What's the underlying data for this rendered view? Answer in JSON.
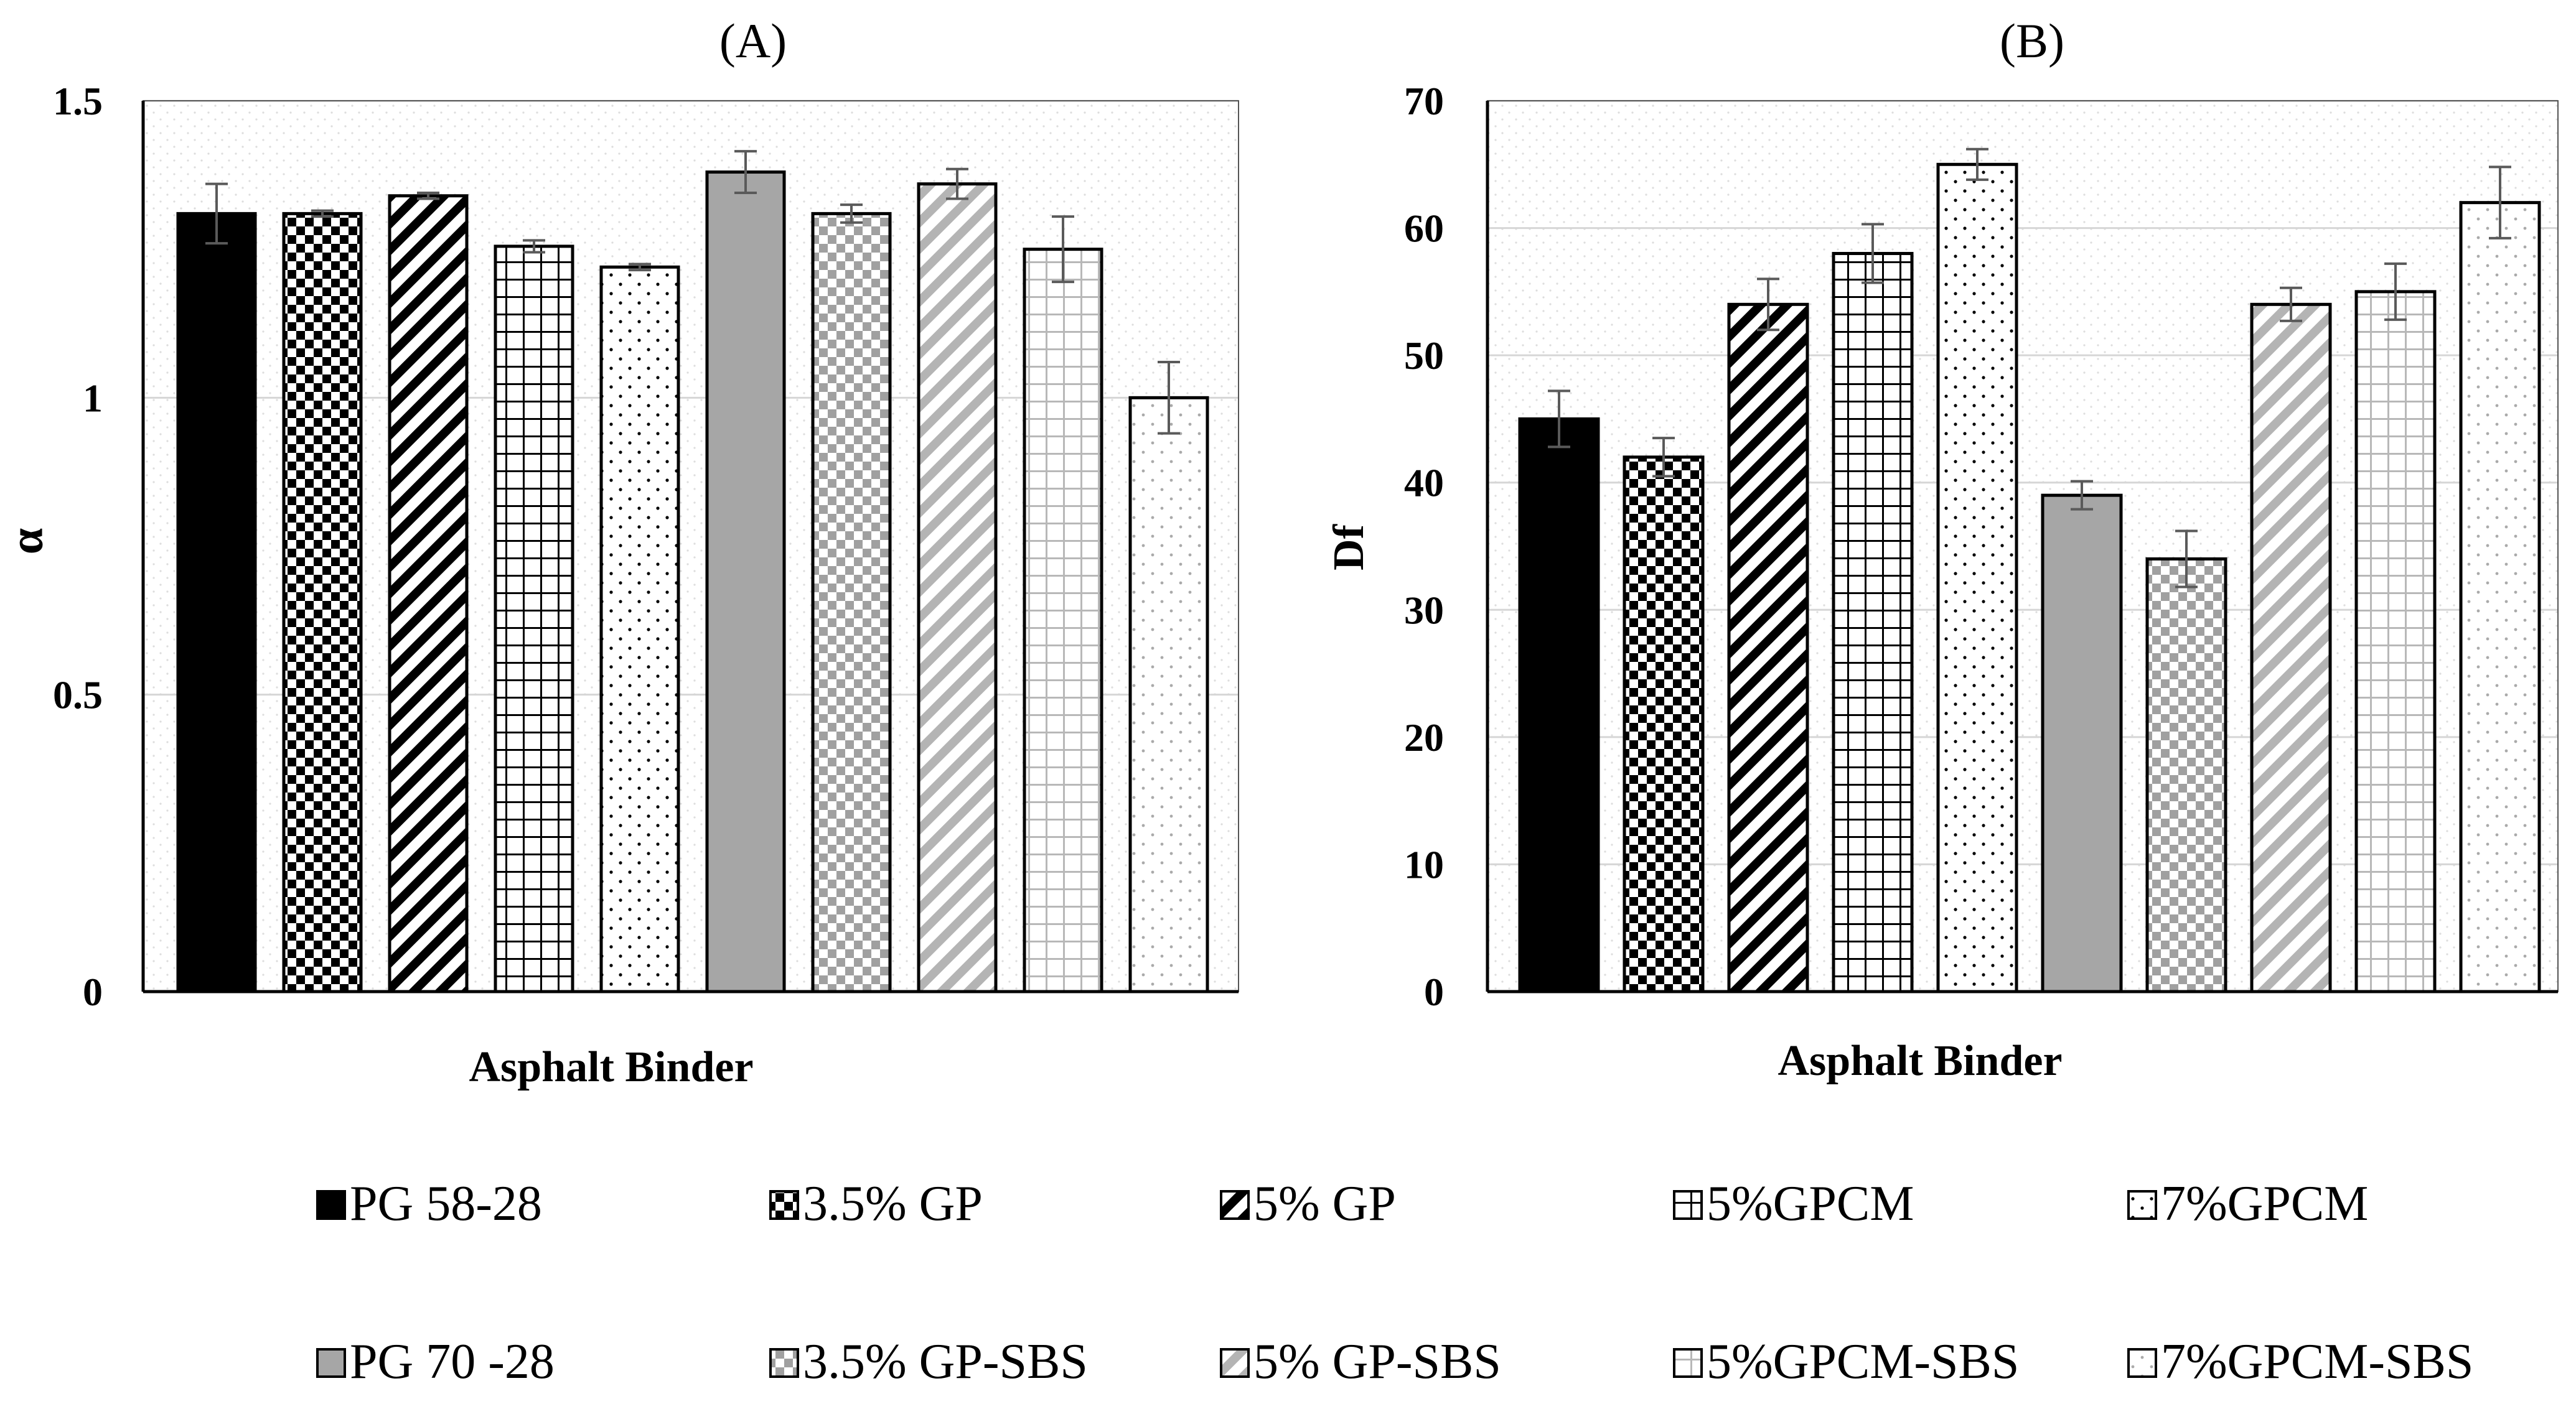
{
  "figure": {
    "legend_items": [
      {
        "label": "PG 58-28",
        "pattern": "solid-black"
      },
      {
        "label": "3.5% GP",
        "pattern": "checker-black"
      },
      {
        "label": "5% GP",
        "pattern": "diag-black"
      },
      {
        "label": "5%GPCM",
        "pattern": "grid"
      },
      {
        "label": "7%GPCM",
        "pattern": "dots"
      },
      {
        "label": "PG 70 -28",
        "pattern": "solid-gray"
      },
      {
        "label": "3.5% GP-SBS",
        "pattern": "checker-gray"
      },
      {
        "label": "5% GP-SBS",
        "pattern": "diag-gray"
      },
      {
        "label": "5%GPCM-SBS",
        "pattern": "grid-light"
      },
      {
        "label": "7%GPCM-SBS",
        "pattern": "dots-light"
      }
    ]
  },
  "chart_data": [
    {
      "panel": "A",
      "type": "bar",
      "title": "(A)",
      "xlabel": "Asphalt Binder",
      "ylabel": "α",
      "ylim": [
        0,
        1.5
      ],
      "yticks": [
        0,
        0.5,
        1,
        1.5
      ],
      "ytick_labels": [
        "0",
        "0.5",
        "1",
        "1.5"
      ],
      "grid": true,
      "categories": [
        "PG 58-28",
        "3.5% GP",
        "5% GP",
        "5%GPCM",
        "7%GPCM",
        "PG 70 -28",
        "3.5% GP-SBS",
        "5% GP-SBS",
        "5%GPCM-SBS",
        "7%GPCM-SBS"
      ],
      "values": [
        1.31,
        1.31,
        1.34,
        1.255,
        1.22,
        1.38,
        1.31,
        1.36,
        1.25,
        1.0
      ],
      "errors": [
        0.05,
        0.005,
        0.005,
        0.01,
        0.005,
        0.035,
        0.015,
        0.025,
        0.055,
        0.06
      ]
    },
    {
      "panel": "B",
      "type": "bar",
      "title": "(B)",
      "xlabel": "Asphalt Binder",
      "ylabel": "Df",
      "ylim": [
        0,
        70
      ],
      "yticks": [
        0,
        10,
        20,
        30,
        40,
        50,
        60,
        70
      ],
      "ytick_labels": [
        "0",
        "10",
        "20",
        "30",
        "40",
        "50",
        "60",
        "70"
      ],
      "grid": true,
      "categories": [
        "PG 58-28",
        "3.5% GP",
        "5% GP",
        "5%GPCM",
        "7%GPCM",
        "PG 70 -28",
        "3.5% GP-SBS",
        "5% GP-SBS",
        "5%GPCM-SBS",
        "7%GPCM-SBS"
      ],
      "values": [
        45,
        42,
        54,
        58,
        65,
        39,
        34,
        54,
        55,
        62
      ],
      "errors": [
        2.2,
        1.5,
        2.0,
        2.3,
        1.2,
        1.1,
        2.2,
        1.3,
        2.2,
        2.8
      ]
    }
  ]
}
